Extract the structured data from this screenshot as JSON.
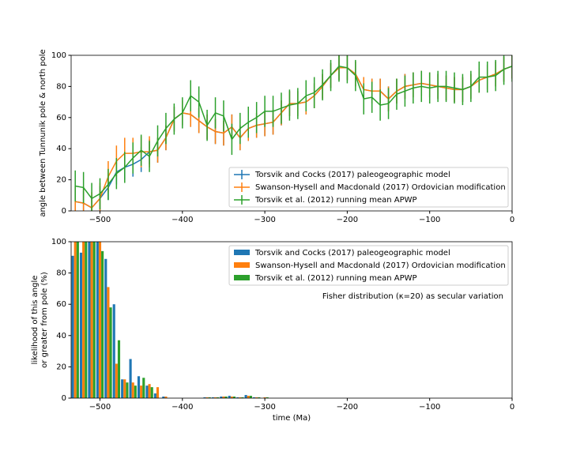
{
  "chart_data": [
    {
      "type": "line",
      "ylabel": "angle between Tunnunik pole & north pole",
      "x": [
        -530,
        -520,
        -510,
        -500,
        -490,
        -480,
        -470,
        -460,
        -450,
        -440,
        -430,
        -420,
        -410,
        -400,
        -390,
        -380,
        -370,
        -360,
        -350,
        -340,
        -330,
        -320,
        -310,
        -300,
        -290,
        -280,
        -270,
        -260,
        -250,
        -240,
        -230,
        -220,
        -210,
        -200,
        -190,
        -180,
        -170,
        -160,
        -150,
        -140,
        -130,
        -120,
        -110,
        -100,
        -90,
        -80,
        -70,
        -60,
        -50,
        -40,
        -30,
        -20,
        -10,
        0
      ],
      "series": [
        {
          "name": "Torsvik and Cocks (2017) paleogeographic model",
          "color": "#1f77b4",
          "values": [
            6,
            5,
            2,
            8,
            15,
            25,
            28,
            30,
            33,
            38,
            39,
            47,
            59,
            63,
            62,
            58,
            54,
            51,
            50,
            54,
            47,
            53,
            55,
            56,
            57,
            63,
            69,
            69,
            70,
            74,
            80,
            87,
            92,
            92,
            88,
            78,
            77,
            77,
            72,
            77,
            80,
            81,
            82,
            81,
            80,
            79,
            78,
            78,
            80,
            84,
            86,
            88,
            91,
            93
          ],
          "errors": [
            8,
            8,
            8,
            8,
            8,
            8,
            8,
            8,
            8,
            8,
            8,
            8,
            8,
            8,
            8,
            8,
            8,
            8,
            8,
            8,
            8,
            8,
            8,
            8,
            8,
            8,
            8,
            8,
            8,
            8,
            8,
            8,
            8,
            8,
            8,
            8,
            8,
            8,
            8,
            8,
            8,
            8,
            8,
            8,
            8,
            8,
            8,
            8,
            8,
            8,
            8,
            8,
            8,
            8
          ]
        },
        {
          "name": "Swanson-Hysell and Macdonald (2017) Ordovician modification",
          "color": "#ff7f0e",
          "values": [
            6,
            5,
            2,
            8,
            22,
            32,
            37,
            37,
            38,
            38,
            39,
            47,
            59,
            63,
            62,
            58,
            54,
            51,
            50,
            54,
            47,
            53,
            55,
            56,
            57,
            63,
            69,
            69,
            70,
            74,
            80,
            87,
            92,
            92,
            88,
            78,
            77,
            77,
            72,
            77,
            80,
            81,
            82,
            81,
            80,
            79,
            78,
            78,
            80,
            84,
            86,
            88,
            91,
            93
          ],
          "errors": [
            10,
            10,
            10,
            10,
            10,
            10,
            10,
            10,
            10,
            10,
            8,
            8,
            8,
            8,
            8,
            8,
            8,
            8,
            8,
            8,
            8,
            8,
            8,
            8,
            8,
            8,
            8,
            8,
            8,
            8,
            8,
            8,
            8,
            8,
            8,
            8,
            8,
            8,
            8,
            8,
            8,
            8,
            8,
            8,
            8,
            8,
            8,
            8,
            8,
            8,
            8,
            8,
            8,
            8
          ]
        },
        {
          "name": "Torsvik et al. (2012) running mean APWP",
          "color": "#2ca02c",
          "values": [
            16,
            15,
            8,
            11,
            17,
            24,
            28,
            34,
            39,
            35,
            45,
            53,
            59,
            63,
            74,
            70,
            55,
            63,
            61,
            46,
            53,
            57,
            60,
            64,
            64,
            66,
            68,
            69,
            74,
            76,
            81,
            87,
            93,
            92,
            87,
            72,
            73,
            68,
            69,
            75,
            77,
            79,
            80,
            79,
            80,
            80,
            79,
            78,
            80,
            86,
            86,
            87,
            91,
            93
          ],
          "errors": [
            10,
            10,
            10,
            10,
            10,
            10,
            10,
            10,
            10,
            10,
            10,
            10,
            10,
            10,
            10,
            10,
            10,
            10,
            10,
            10,
            10,
            10,
            10,
            10,
            10,
            10,
            10,
            10,
            10,
            10,
            10,
            10,
            10,
            10,
            10,
            10,
            10,
            10,
            10,
            10,
            10,
            10,
            10,
            10,
            10,
            10,
            10,
            10,
            10,
            10,
            10,
            10,
            10,
            10
          ]
        }
      ],
      "xlim": [
        -535,
        0
      ],
      "xticks": [
        {
          "value": -500,
          "label": "−500"
        },
        {
          "value": -400,
          "label": "−400"
        },
        {
          "value": -300,
          "label": "−300"
        },
        {
          "value": -200,
          "label": "−200"
        },
        {
          "value": -100,
          "label": "−100"
        },
        0
      ],
      "ylim": [
        0,
        100
      ],
      "yticks": [
        0,
        20,
        40,
        60,
        80,
        100
      ],
      "legend": "lower right"
    },
    {
      "type": "bar",
      "xlabel": "time (Ma)",
      "ylabel": [
        "likelihood of this angle",
        "or greater from pole (%)"
      ],
      "annotation": "Fisher distribution (κ=20) as secular variation",
      "x": [
        -530,
        -520,
        -510,
        -500,
        -490,
        -480,
        -470,
        -460,
        -450,
        -440,
        -430,
        -420,
        -410,
        -400,
        -390,
        -380,
        -370,
        -360,
        -350,
        -340,
        -330,
        -320,
        -310,
        -300
      ],
      "series": [
        {
          "name": "Torsvik and Cocks (2017) paleogeographic model",
          "color": "#1f77b4",
          "values": [
            91,
            93,
            100,
            100,
            89,
            60,
            12,
            25,
            14,
            8,
            3,
            1,
            0,
            0,
            0,
            0,
            0.5,
            0.5,
            1,
            1.5,
            0.5,
            2,
            0.5,
            0
          ]
        },
        {
          "name": "Swanson-Hysell and Macdonald (2017) Ordovician modification",
          "color": "#ff7f0e",
          "values": [
            100,
            100,
            100,
            100,
            71,
            22,
            12,
            10,
            8,
            9,
            7,
            1,
            0,
            0,
            0,
            0,
            0.5,
            0.5,
            1,
            1,
            0.5,
            1.5,
            0.5,
            0.5
          ]
        },
        {
          "name": "Torsvik et al. (2012) running mean APWP",
          "color": "#2ca02c",
          "values": [
            100,
            100,
            100,
            94,
            58,
            37,
            10,
            8,
            13,
            7,
            0,
            0,
            0,
            0,
            0,
            0,
            0.5,
            0.5,
            1,
            1,
            0.5,
            1.5,
            0.5,
            0.5
          ]
        }
      ],
      "xlim": [
        -535,
        0
      ],
      "xticks": [
        {
          "value": -500,
          "label": "−500"
        },
        {
          "value": -400,
          "label": "−400"
        },
        {
          "value": -300,
          "label": "−300"
        },
        {
          "value": -200,
          "label": "−200"
        },
        {
          "value": -100,
          "label": "−100"
        },
        0
      ],
      "ylim": [
        0,
        100
      ],
      "yticks": [
        0,
        20,
        40,
        60,
        80,
        100
      ],
      "legend": "upper right"
    }
  ]
}
